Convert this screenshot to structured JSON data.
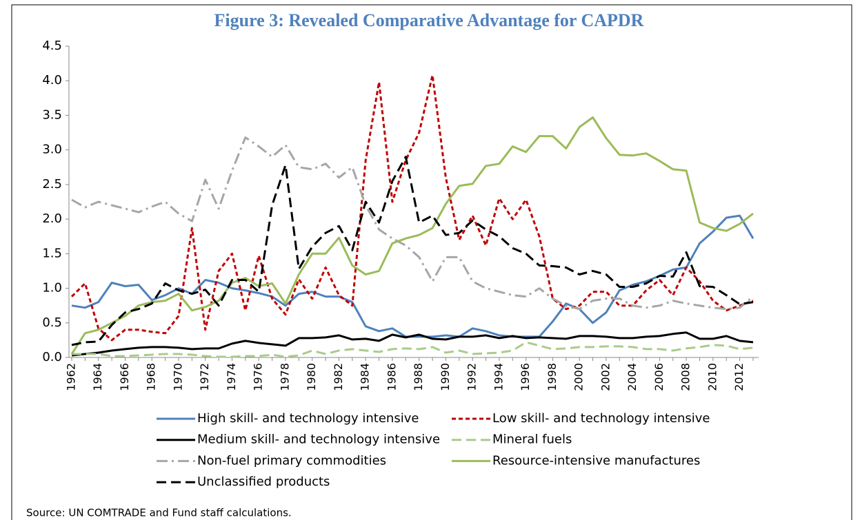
{
  "chart_data": {
    "type": "line",
    "title": "Figure 3: Revealed Comparative Advantage for CAPDR",
    "source": "Source: UN COMTRADE and Fund staff calculations.",
    "categories": [
      "1962",
      null,
      "1964",
      null,
      "1966",
      null,
      "1968",
      null,
      "1970",
      null,
      "1972",
      null,
      "1974",
      null,
      "1976",
      null,
      "1978",
      null,
      "1980",
      null,
      "1982",
      null,
      "1984",
      null,
      "1986",
      null,
      "1988",
      null,
      "1990",
      null,
      "1992",
      null,
      "1994",
      null,
      "1996",
      null,
      "1998",
      null,
      "2000",
      null,
      "2002",
      null,
      "2004",
      null,
      "2006",
      null,
      "2008",
      null,
      "2010",
      null,
      "2012",
      null
    ],
    "ylim": [
      0,
      4.5
    ],
    "yticks": [
      {
        "value": 0,
        "label": "0.0"
      },
      0.5,
      {
        "value": 1,
        "label": "1.0"
      },
      1.5,
      {
        "value": 2,
        "label": "2.0"
      },
      2.5,
      {
        "value": 3,
        "label": "3.0"
      },
      3.5,
      {
        "value": 4,
        "label": "4.0"
      },
      4.5
    ],
    "grid": false,
    "legend": "bottom",
    "series": [
      {
        "name": "High skill- and technology intensive",
        "color": "#4f81bd",
        "style": "solid",
        "values": [
          0.75,
          0.72,
          0.8,
          1.08,
          1.03,
          1.05,
          0.83,
          0.9,
          1.0,
          0.92,
          1.12,
          1.08,
          1.0,
          0.97,
          0.93,
          0.88,
          0.75,
          0.92,
          0.95,
          0.88,
          0.88,
          0.8,
          0.45,
          0.38,
          0.42,
          0.3,
          0.3,
          0.3,
          0.32,
          0.3,
          0.42,
          0.38,
          0.32,
          0.3,
          0.3,
          0.3,
          0.52,
          0.78,
          0.7,
          0.5,
          0.65,
          0.97,
          1.05,
          1.1,
          1.18,
          1.27,
          1.3,
          1.65,
          1.82,
          2.02,
          2.05,
          1.72
        ]
      },
      {
        "name": "Low skill- and technology intensive",
        "color": "#c00000",
        "style": "dashed",
        "values": [
          0.88,
          1.07,
          0.42,
          0.25,
          0.4,
          0.4,
          0.37,
          0.35,
          0.6,
          1.87,
          0.4,
          1.25,
          1.5,
          0.68,
          1.47,
          0.85,
          0.62,
          1.13,
          0.85,
          1.3,
          0.9,
          0.75,
          2.85,
          3.98,
          2.25,
          2.85,
          3.25,
          4.08,
          2.6,
          1.7,
          2.05,
          1.62,
          2.3,
          2.0,
          2.28,
          1.75,
          0.85,
          0.7,
          0.75,
          0.95,
          0.95,
          0.75,
          0.75,
          0.97,
          1.12,
          0.9,
          1.3,
          1.1,
          0.82,
          0.68,
          0.75,
          0.82
        ]
      },
      {
        "name": "Medium skill- and technology intensive",
        "color": "#000000",
        "style": "solid",
        "values": [
          0.03,
          0.05,
          0.07,
          0.1,
          0.12,
          0.14,
          0.15,
          0.15,
          0.14,
          0.12,
          0.13,
          0.13,
          0.2,
          0.24,
          0.21,
          0.19,
          0.17,
          0.28,
          0.28,
          0.29,
          0.32,
          0.26,
          0.27,
          0.24,
          0.33,
          0.29,
          0.33,
          0.27,
          0.26,
          0.3,
          0.3,
          0.32,
          0.28,
          0.31,
          0.28,
          0.29,
          0.28,
          0.27,
          0.31,
          0.31,
          0.3,
          0.28,
          0.28,
          0.3,
          0.31,
          0.34,
          0.36,
          0.27,
          0.27,
          0.31,
          0.24,
          0.22
        ]
      },
      {
        "name": "Mineral fuels",
        "color": "#a9cc8a",
        "style": "longdash",
        "values": [
          0.05,
          0.05,
          0.05,
          0.02,
          0.02,
          0.03,
          0.04,
          0.05,
          0.05,
          0.04,
          0.02,
          0.01,
          0.01,
          0.02,
          0.02,
          0.04,
          0.01,
          0.03,
          0.1,
          0.05,
          0.1,
          0.12,
          0.1,
          0.08,
          0.12,
          0.13,
          0.12,
          0.15,
          0.07,
          0.1,
          0.05,
          0.06,
          0.07,
          0.1,
          0.22,
          0.17,
          0.12,
          0.13,
          0.15,
          0.15,
          0.16,
          0.16,
          0.15,
          0.12,
          0.12,
          0.1,
          0.13,
          0.15,
          0.18,
          0.17,
          0.12,
          0.14
        ]
      },
      {
        "name": "Non-fuel primary commodities",
        "color": "#a6a6a6",
        "style": "dashdot",
        "values": [
          2.28,
          2.17,
          2.25,
          2.2,
          2.15,
          2.1,
          2.18,
          2.25,
          2.08,
          1.97,
          2.57,
          2.15,
          2.7,
          3.18,
          3.05,
          2.9,
          3.07,
          2.75,
          2.72,
          2.8,
          2.6,
          2.75,
          2.2,
          1.85,
          1.72,
          1.62,
          1.45,
          1.1,
          1.45,
          1.45,
          1.1,
          1.0,
          0.95,
          0.9,
          0.88,
          1.0,
          0.85,
          0.75,
          0.7,
          0.82,
          0.85,
          0.85,
          0.75,
          0.72,
          0.75,
          0.82,
          0.78,
          0.75,
          0.72,
          0.7,
          0.72,
          0.88
        ]
      },
      {
        "name": "Resource-intensive manufactures",
        "color": "#9bbb59",
        "style": "solid",
        "values": [
          0.05,
          0.35,
          0.4,
          0.5,
          0.6,
          0.75,
          0.8,
          0.82,
          0.92,
          0.68,
          0.73,
          0.82,
          1.08,
          1.15,
          1.03,
          1.07,
          0.78,
          1.2,
          1.5,
          1.5,
          1.73,
          1.33,
          1.2,
          1.25,
          1.65,
          1.72,
          1.77,
          1.87,
          2.22,
          2.48,
          2.51,
          2.77,
          2.8,
          3.05,
          2.97,
          3.2,
          3.2,
          3.02,
          3.33,
          3.47,
          3.17,
          2.93,
          2.92,
          2.95,
          2.84,
          2.72,
          2.7,
          1.95,
          1.87,
          1.83,
          1.93,
          2.08
        ]
      },
      {
        "name": "Unclassified products",
        "color": "#000000",
        "style": "longdash",
        "values": [
          0.18,
          0.22,
          0.23,
          0.47,
          0.65,
          0.7,
          0.78,
          1.07,
          0.97,
          0.92,
          0.98,
          0.75,
          1.12,
          1.12,
          0.95,
          2.2,
          2.78,
          1.28,
          1.6,
          1.8,
          1.9,
          1.55,
          2.25,
          1.95,
          2.55,
          2.9,
          1.95,
          2.05,
          1.77,
          1.8,
          1.98,
          1.85,
          1.75,
          1.58,
          1.5,
          1.33,
          1.32,
          1.3,
          1.2,
          1.25,
          1.2,
          1.02,
          1.02,
          1.07,
          1.18,
          1.17,
          1.52,
          1.03,
          1.02,
          0.9,
          0.77,
          0.8
        ]
      }
    ]
  }
}
